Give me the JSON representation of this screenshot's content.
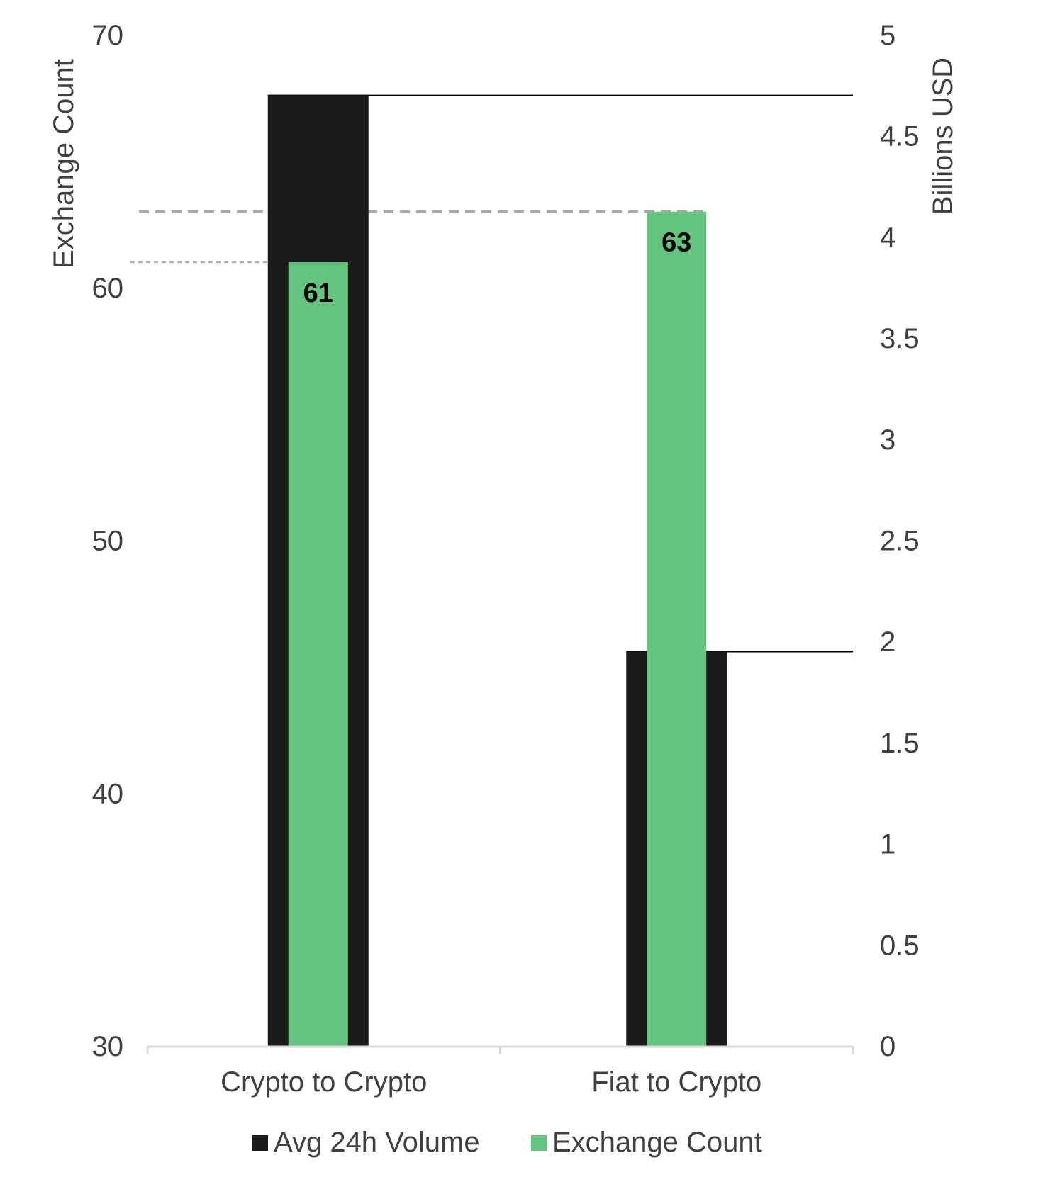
{
  "chart_data": {
    "type": "bar",
    "categories": [
      "Crypto to Crypto",
      "Fiat to Crypto"
    ],
    "series": [
      {
        "name": "Avg 24h Volume",
        "axis": "right",
        "color": "#1a1a1a",
        "values": [
          4.7,
          1.95
        ]
      },
      {
        "name": "Exchange Count",
        "axis": "left",
        "color": "#62c47d",
        "values": [
          61,
          63
        ],
        "data_labels": [
          "61",
          "63"
        ]
      }
    ],
    "left_axis": {
      "title": "Exchange Count",
      "ylim": [
        30,
        70
      ],
      "ticks": [
        30,
        40,
        50,
        60,
        70
      ],
      "tick_labels": [
        "30",
        "40",
        "50",
        "60",
        "70"
      ]
    },
    "right_axis": {
      "title": "Billions USD",
      "ylim": [
        0,
        5
      ],
      "ticks": [
        0,
        0.5,
        1,
        1.5,
        2,
        2.5,
        3,
        3.5,
        4,
        4.5,
        5
      ],
      "tick_labels": [
        "0",
        "0.5",
        "1",
        "1.5",
        "2",
        "2.5",
        "3",
        "3.5",
        "4",
        "4.5",
        "5"
      ]
    },
    "reference_lines": [
      {
        "axis": "right",
        "value": 4.7,
        "style": "solid",
        "color": "#000000"
      },
      {
        "axis": "right",
        "value": 1.95,
        "style": "solid",
        "color": "#000000"
      },
      {
        "axis": "left",
        "value": 63,
        "style": "dashed",
        "color": "#aaaaaa"
      },
      {
        "axis": "left",
        "value": 61,
        "style": "dashed",
        "color": "#aaaaaa"
      }
    ],
    "legend_position": "bottom",
    "grid": false
  }
}
